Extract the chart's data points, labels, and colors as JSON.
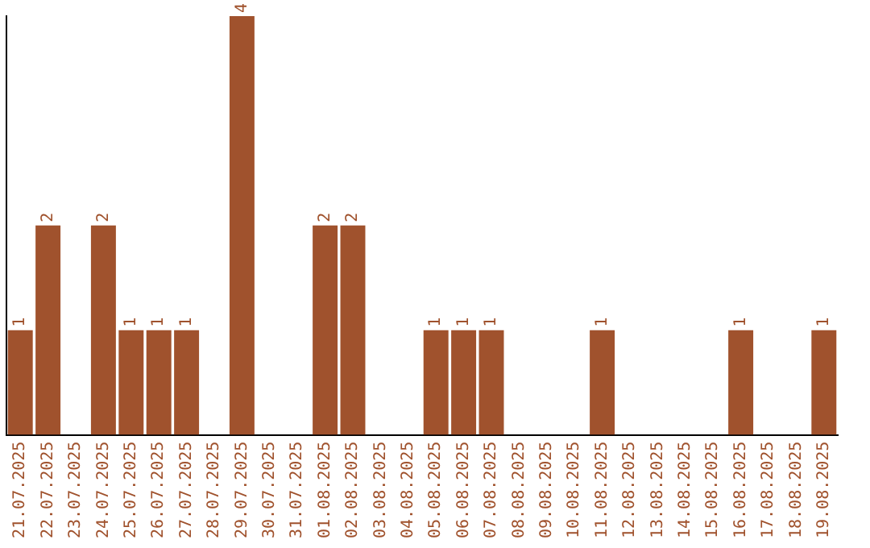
{
  "chart_data": {
    "type": "bar",
    "categories": [
      "21.07.2025",
      "22.07.2025",
      "23.07.2025",
      "24.07.2025",
      "25.07.2025",
      "26.07.2025",
      "27.07.2025",
      "28.07.2025",
      "29.07.2025",
      "30.07.2025",
      "31.07.2025",
      "01.08.2025",
      "02.08.2025",
      "03.08.2025",
      "04.08.2025",
      "05.08.2025",
      "06.08.2025",
      "07.08.2025",
      "08.08.2025",
      "09.08.2025",
      "10.08.2025",
      "11.08.2025",
      "12.08.2025",
      "13.08.2025",
      "14.08.2025",
      "15.08.2025",
      "16.08.2025",
      "17.08.2025",
      "18.08.2025",
      "19.08.2025"
    ],
    "values": [
      1,
      2,
      0,
      2,
      1,
      1,
      1,
      0,
      4,
      0,
      0,
      2,
      2,
      0,
      0,
      1,
      1,
      1,
      0,
      0,
      0,
      1,
      0,
      0,
      0,
      0,
      1,
      0,
      0,
      1
    ],
    "value_labels": [
      "1",
      "2",
      null,
      "2",
      "1",
      "1",
      "1",
      null,
      "4",
      null,
      null,
      "2",
      "2",
      null,
      null,
      "1",
      "1",
      "1",
      null,
      null,
      null,
      "1",
      null,
      null,
      null,
      null,
      "1",
      null,
      null,
      "1"
    ],
    "color": "#a0522d",
    "grid": false,
    "legend": false,
    "tick_labels": "x"
  }
}
